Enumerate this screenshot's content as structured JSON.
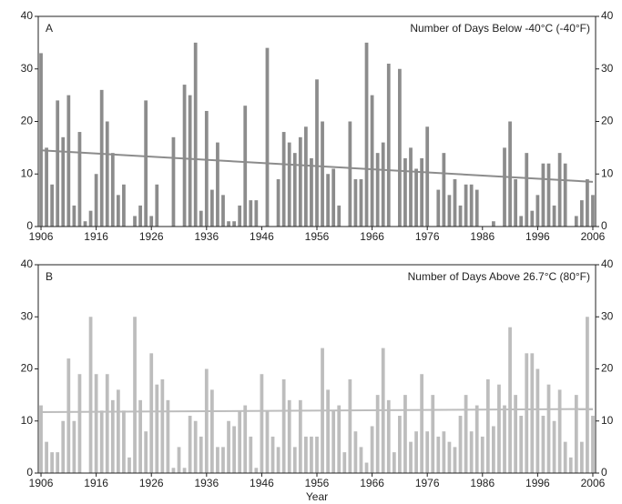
{
  "chart_data": [
    {
      "type": "bar",
      "panel": "A",
      "title": "Number of Days Below -40°C (-40°F)",
      "color": "#8c8c8c",
      "x": [
        1906,
        1907,
        1908,
        1909,
        1910,
        1911,
        1912,
        1913,
        1914,
        1915,
        1916,
        1917,
        1918,
        1919,
        1920,
        1921,
        1922,
        1923,
        1924,
        1925,
        1926,
        1927,
        1928,
        1929,
        1930,
        1931,
        1932,
        1933,
        1934,
        1935,
        1936,
        1937,
        1938,
        1939,
        1940,
        1941,
        1942,
        1943,
        1944,
        1945,
        1946,
        1947,
        1948,
        1949,
        1950,
        1951,
        1952,
        1953,
        1954,
        1955,
        1956,
        1957,
        1958,
        1959,
        1960,
        1961,
        1962,
        1963,
        1964,
        1965,
        1966,
        1967,
        1968,
        1969,
        1970,
        1971,
        1972,
        1973,
        1974,
        1975,
        1976,
        1977,
        1978,
        1979,
        1980,
        1981,
        1982,
        1983,
        1984,
        1985,
        1986,
        1987,
        1988,
        1989,
        1990,
        1991,
        1992,
        1993,
        1994,
        1995,
        1996,
        1997,
        1998,
        1999,
        2000,
        2001,
        2002,
        2003,
        2004,
        2005,
        2006
      ],
      "values": [
        33,
        15,
        8,
        24,
        17,
        25,
        4,
        18,
        1,
        3,
        10,
        26,
        20,
        14,
        6,
        8,
        0,
        2,
        4,
        24,
        2,
        8,
        0,
        0,
        17,
        0,
        27,
        25,
        35,
        3,
        22,
        7,
        16,
        6,
        1,
        1,
        4,
        23,
        5,
        5,
        0,
        34,
        0,
        9,
        18,
        16,
        14,
        17,
        19,
        13,
        28,
        20,
        10,
        11,
        4,
        0,
        20,
        9,
        9,
        35,
        25,
        14,
        16,
        31,
        0,
        30,
        13,
        15,
        11,
        13,
        19,
        0,
        7,
        14,
        6,
        9,
        4,
        8,
        8,
        7,
        0,
        0,
        1,
        0,
        15,
        20,
        9,
        2,
        14,
        3,
        6,
        12,
        12,
        4,
        14,
        12,
        0,
        2,
        5,
        9,
        6
      ],
      "trend": {
        "x": [
          1906,
          2006
        ],
        "values": [
          14.5,
          8.5
        ]
      },
      "xlim": [
        1905.5,
        2006.5
      ],
      "xticks": [
        1906,
        1916,
        1926,
        1936,
        1946,
        1956,
        1966,
        1976,
        1986,
        1996,
        2006
      ],
      "ylim": [
        0,
        40
      ],
      "yticks": [
        0,
        10,
        20,
        30,
        40
      ]
    },
    {
      "type": "bar",
      "panel": "B",
      "title": "Number of Days Above 26.7°C (80°F)",
      "color": "#bdbdbd",
      "xlabel": "Year",
      "x": [
        1906,
        1907,
        1908,
        1909,
        1910,
        1911,
        1912,
        1913,
        1914,
        1915,
        1916,
        1917,
        1918,
        1919,
        1920,
        1921,
        1922,
        1923,
        1924,
        1925,
        1926,
        1927,
        1928,
        1929,
        1930,
        1931,
        1932,
        1933,
        1934,
        1935,
        1936,
        1937,
        1938,
        1939,
        1940,
        1941,
        1942,
        1943,
        1944,
        1945,
        1946,
        1947,
        1948,
        1949,
        1950,
        1951,
        1952,
        1953,
        1954,
        1955,
        1956,
        1957,
        1958,
        1959,
        1960,
        1961,
        1962,
        1963,
        1964,
        1965,
        1966,
        1967,
        1968,
        1969,
        1970,
        1971,
        1972,
        1973,
        1974,
        1975,
        1976,
        1977,
        1978,
        1979,
        1980,
        1981,
        1982,
        1983,
        1984,
        1985,
        1986,
        1987,
        1988,
        1989,
        1990,
        1991,
        1992,
        1993,
        1994,
        1995,
        1996,
        1997,
        1998,
        1999,
        2000,
        2001,
        2002,
        2003,
        2004,
        2005,
        2006
      ],
      "values": [
        13,
        6,
        4,
        4,
        10,
        22,
        10,
        19,
        0,
        30,
        19,
        12,
        19,
        14,
        16,
        12,
        3,
        30,
        14,
        8,
        23,
        17,
        18,
        14,
        1,
        5,
        1,
        11,
        10,
        7,
        20,
        16,
        5,
        5,
        10,
        9,
        12,
        13,
        7,
        1,
        19,
        12,
        7,
        5,
        18,
        14,
        5,
        14,
        7,
        7,
        7,
        24,
        16,
        12,
        13,
        4,
        18,
        8,
        5,
        2,
        9,
        15,
        24,
        14,
        4,
        11,
        15,
        6,
        8,
        19,
        8,
        15,
        7,
        8,
        6,
        5,
        11,
        15,
        8,
        13,
        7,
        18,
        9,
        17,
        13,
        28,
        15,
        11,
        23,
        23,
        20,
        11,
        17,
        10,
        16,
        6,
        3,
        15,
        6,
        30,
        11
      ],
      "trend": {
        "x": [
          1906,
          2006
        ],
        "values": [
          11.7,
          12.3
        ]
      },
      "xlim": [
        1905.5,
        2006.5
      ],
      "xticks": [
        1906,
        1916,
        1926,
        1936,
        1946,
        1956,
        1966,
        1976,
        1986,
        1996,
        2006
      ],
      "ylim": [
        0,
        40
      ],
      "yticks": [
        0,
        10,
        20,
        30,
        40
      ]
    }
  ]
}
